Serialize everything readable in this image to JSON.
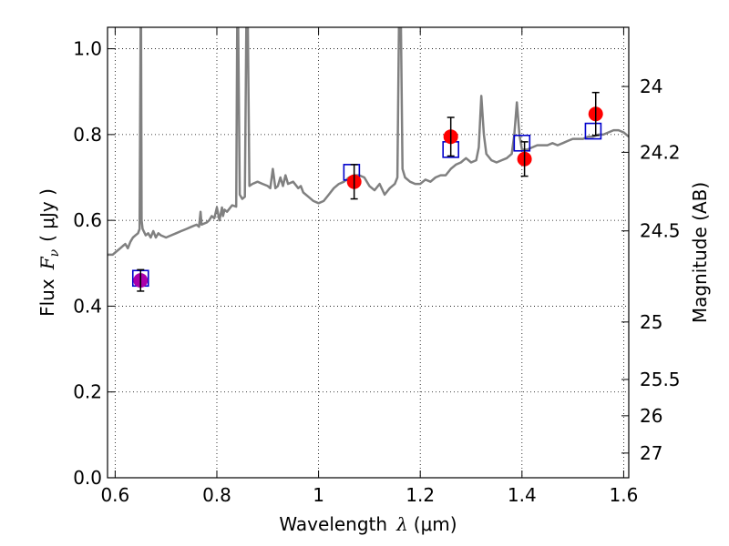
{
  "chart_data": {
    "type": "scatter",
    "xlabel_text": "Wavelength",
    "xlabel_symbol": "λ",
    "xlabel_unit": "(μm)",
    "ylabel_text": "Flux",
    "ylabel_symbol": "F",
    "ylabel_sub": "ν",
    "ylabel_unit": "( μJy )",
    "y2label": "Magnitude (AB)",
    "xlim": [
      0.585,
      1.61
    ],
    "ylim": [
      0.0,
      1.05
    ],
    "grid": true,
    "grid_style": "dotted",
    "x_ticks": [
      {
        "v": 0.6,
        "label": "0.6"
      },
      {
        "v": 0.8,
        "label": "0.8"
      },
      {
        "v": 1.0,
        "label": "1"
      },
      {
        "v": 1.2,
        "label": "1.2"
      },
      {
        "v": 1.4,
        "label": "1.4"
      },
      {
        "v": 1.6,
        "label": "1.6"
      }
    ],
    "y_ticks": [
      {
        "v": 0.0,
        "label": "0.0"
      },
      {
        "v": 0.2,
        "label": "0.2"
      },
      {
        "v": 0.4,
        "label": "0.4"
      },
      {
        "v": 0.6,
        "label": "0.6"
      },
      {
        "v": 0.8,
        "label": "0.8"
      },
      {
        "v": 1.0,
        "label": "1.0"
      }
    ],
    "mag_ticks": [
      {
        "mag": 24,
        "label": "24"
      },
      {
        "mag": 24.2,
        "label": "24.2"
      },
      {
        "mag": 24.5,
        "label": "24.5"
      },
      {
        "mag": 25,
        "label": "25"
      },
      {
        "mag": 25.5,
        "label": "25.5"
      },
      {
        "mag": 26,
        "label": "26"
      },
      {
        "mag": 27,
        "label": "27"
      }
    ],
    "colors": {
      "spectrum": "#808080",
      "observed": "#ff0000",
      "model_box": "#0000cc",
      "first_point": "#aa00aa",
      "errorbar": "#000000"
    },
    "observed": [
      {
        "x": 0.65,
        "y": 0.46,
        "err": 0.025
      },
      {
        "x": 1.07,
        "y": 0.69,
        "err": 0.04
      },
      {
        "x": 1.26,
        "y": 0.795,
        "err": 0.045
      },
      {
        "x": 1.405,
        "y": 0.743,
        "err": 0.04
      },
      {
        "x": 1.545,
        "y": 0.848,
        "err": 0.05
      }
    ],
    "model": [
      {
        "x": 0.65,
        "y": 0.465
      },
      {
        "x": 1.065,
        "y": 0.712
      },
      {
        "x": 1.26,
        "y": 0.765
      },
      {
        "x": 1.4,
        "y": 0.78
      },
      {
        "x": 1.54,
        "y": 0.808
      }
    ],
    "spectrum": [
      [
        0.585,
        0.52
      ],
      [
        0.595,
        0.52
      ],
      [
        0.6,
        0.525
      ],
      [
        0.61,
        0.535
      ],
      [
        0.615,
        0.54
      ],
      [
        0.62,
        0.545
      ],
      [
        0.625,
        0.535
      ],
      [
        0.63,
        0.55
      ],
      [
        0.635,
        0.56
      ],
      [
        0.64,
        0.565
      ],
      [
        0.645,
        0.57
      ],
      [
        0.648,
        0.58
      ],
      [
        0.65,
        1.05
      ],
      [
        0.651,
        1.05
      ],
      [
        0.652,
        0.6
      ],
      [
        0.654,
        0.58
      ],
      [
        0.66,
        0.565
      ],
      [
        0.665,
        0.57
      ],
      [
        0.67,
        0.56
      ],
      [
        0.675,
        0.575
      ],
      [
        0.68,
        0.56
      ],
      [
        0.685,
        0.57
      ],
      [
        0.69,
        0.565
      ],
      [
        0.7,
        0.56
      ],
      [
        0.71,
        0.565
      ],
      [
        0.72,
        0.57
      ],
      [
        0.73,
        0.575
      ],
      [
        0.74,
        0.58
      ],
      [
        0.75,
        0.585
      ],
      [
        0.76,
        0.59
      ],
      [
        0.765,
        0.585
      ],
      [
        0.768,
        0.62
      ],
      [
        0.77,
        0.59
      ],
      [
        0.78,
        0.595
      ],
      [
        0.785,
        0.6
      ],
      [
        0.79,
        0.61
      ],
      [
        0.795,
        0.605
      ],
      [
        0.8,
        0.63
      ],
      [
        0.805,
        0.6
      ],
      [
        0.81,
        0.63
      ],
      [
        0.812,
        0.61
      ],
      [
        0.815,
        0.625
      ],
      [
        0.82,
        0.62
      ],
      [
        0.83,
        0.635
      ],
      [
        0.838,
        0.632
      ],
      [
        0.84,
        1.05
      ],
      [
        0.842,
        1.05
      ],
      [
        0.845,
        0.66
      ],
      [
        0.85,
        0.65
      ],
      [
        0.855,
        0.655
      ],
      [
        0.858,
        1.05
      ],
      [
        0.861,
        1.05
      ],
      [
        0.864,
        0.68
      ],
      [
        0.87,
        0.685
      ],
      [
        0.88,
        0.69
      ],
      [
        0.89,
        0.685
      ],
      [
        0.9,
        0.68
      ],
      [
        0.905,
        0.675
      ],
      [
        0.91,
        0.72
      ],
      [
        0.915,
        0.675
      ],
      [
        0.92,
        0.68
      ],
      [
        0.925,
        0.7
      ],
      [
        0.93,
        0.68
      ],
      [
        0.935,
        0.705
      ],
      [
        0.94,
        0.685
      ],
      [
        0.95,
        0.69
      ],
      [
        0.96,
        0.675
      ],
      [
        0.965,
        0.68
      ],
      [
        0.97,
        0.665
      ],
      [
        0.98,
        0.655
      ],
      [
        0.99,
        0.645
      ],
      [
        1.0,
        0.64
      ],
      [
        1.01,
        0.645
      ],
      [
        1.02,
        0.66
      ],
      [
        1.03,
        0.675
      ],
      [
        1.04,
        0.685
      ],
      [
        1.05,
        0.69
      ],
      [
        1.06,
        0.7
      ],
      [
        1.07,
        0.705
      ],
      [
        1.08,
        0.705
      ],
      [
        1.09,
        0.7
      ],
      [
        1.1,
        0.68
      ],
      [
        1.11,
        0.67
      ],
      [
        1.12,
        0.685
      ],
      [
        1.13,
        0.66
      ],
      [
        1.14,
        0.675
      ],
      [
        1.15,
        0.685
      ],
      [
        1.155,
        0.7
      ],
      [
        1.158,
        1.05
      ],
      [
        1.162,
        1.05
      ],
      [
        1.165,
        0.72
      ],
      [
        1.17,
        0.7
      ],
      [
        1.18,
        0.69
      ],
      [
        1.19,
        0.685
      ],
      [
        1.2,
        0.685
      ],
      [
        1.21,
        0.695
      ],
      [
        1.22,
        0.69
      ],
      [
        1.23,
        0.7
      ],
      [
        1.24,
        0.705
      ],
      [
        1.25,
        0.705
      ],
      [
        1.26,
        0.72
      ],
      [
        1.27,
        0.73
      ],
      [
        1.28,
        0.735
      ],
      [
        1.29,
        0.745
      ],
      [
        1.3,
        0.735
      ],
      [
        1.31,
        0.74
      ],
      [
        1.315,
        0.77
      ],
      [
        1.32,
        0.89
      ],
      [
        1.325,
        0.8
      ],
      [
        1.33,
        0.755
      ],
      [
        1.34,
        0.74
      ],
      [
        1.35,
        0.735
      ],
      [
        1.36,
        0.74
      ],
      [
        1.37,
        0.745
      ],
      [
        1.38,
        0.755
      ],
      [
        1.385,
        0.8
      ],
      [
        1.39,
        0.875
      ],
      [
        1.395,
        0.8
      ],
      [
        1.4,
        0.765
      ],
      [
        1.41,
        0.765
      ],
      [
        1.42,
        0.77
      ],
      [
        1.43,
        0.775
      ],
      [
        1.44,
        0.775
      ],
      [
        1.45,
        0.775
      ],
      [
        1.46,
        0.78
      ],
      [
        1.47,
        0.775
      ],
      [
        1.48,
        0.78
      ],
      [
        1.49,
        0.785
      ],
      [
        1.5,
        0.79
      ],
      [
        1.51,
        0.79
      ],
      [
        1.52,
        0.79
      ],
      [
        1.53,
        0.795
      ],
      [
        1.54,
        0.795
      ],
      [
        1.55,
        0.8
      ],
      [
        1.56,
        0.8
      ],
      [
        1.57,
        0.805
      ],
      [
        1.58,
        0.81
      ],
      [
        1.59,
        0.81
      ],
      [
        1.6,
        0.805
      ],
      [
        1.61,
        0.795
      ]
    ]
  }
}
